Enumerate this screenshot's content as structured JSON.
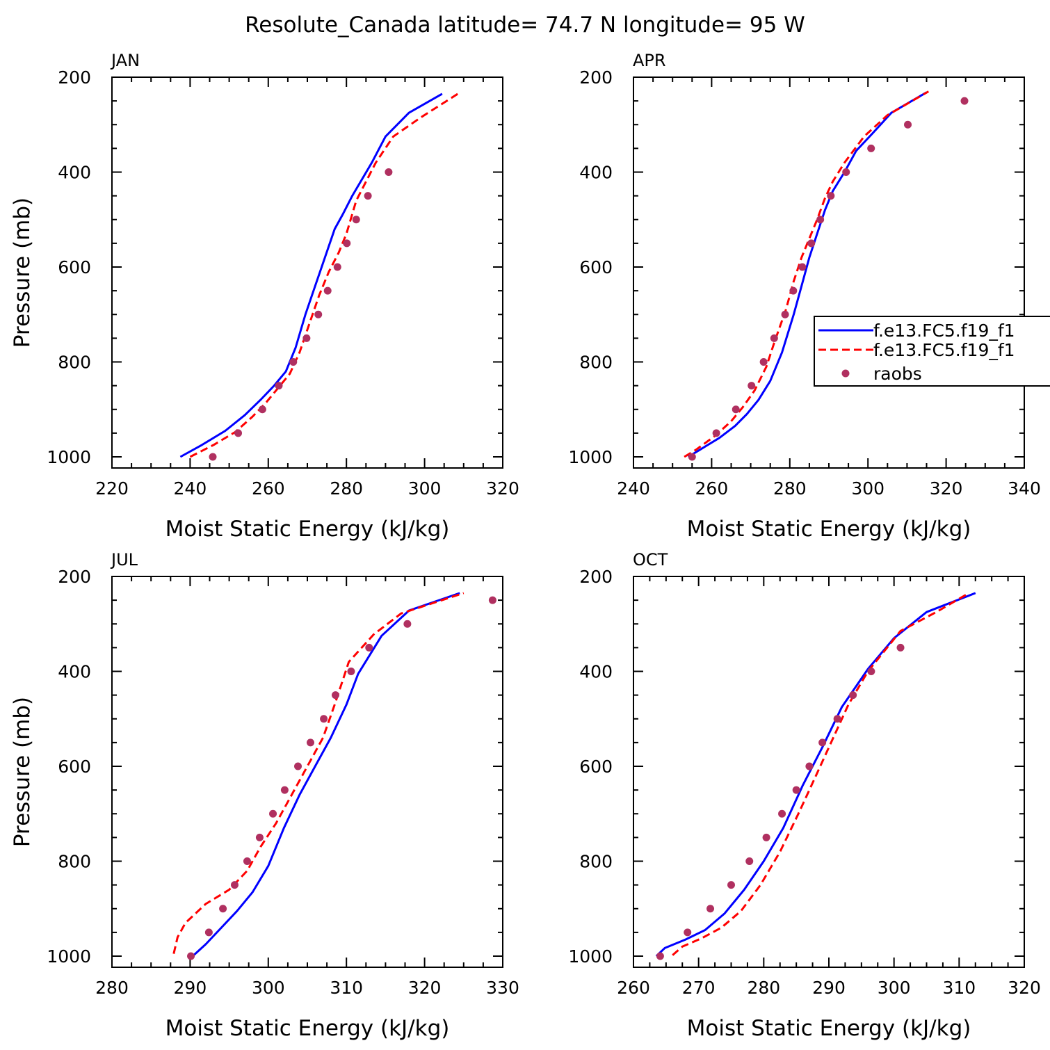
{
  "title": "Resolute_Canada  latitude= 74.7 N longitude= 95 W",
  "legend": {
    "items": [
      {
        "label": "f.e13.FC5.f19_f1",
        "color": "#0000ff",
        "style": "solid"
      },
      {
        "label": "f.e13.FC5.f19_f1",
        "color": "#ff0000",
        "style": "dashed"
      },
      {
        "label": "raobs",
        "color": "#b03060",
        "style": "marker"
      }
    ]
  },
  "chart_data": [
    {
      "type": "line",
      "panel": "JAN",
      "xlabel": "Moist Static Energy (kJ/kg)",
      "ylabel": "Pressure (mb)",
      "xlim": [
        220,
        320
      ],
      "ylim": [
        1000,
        200
      ],
      "xticks": [
        220,
        240,
        260,
        280,
        300,
        320
      ],
      "yticks": [
        200,
        400,
        600,
        800,
        1000
      ],
      "series": [
        {
          "values": [
            [
              237.5,
              1000
            ],
            [
              243,
              975
            ],
            [
              249,
              945
            ],
            [
              254,
              912
            ],
            [
              258,
              880
            ],
            [
              261.5,
              850
            ],
            [
              264.5,
              820
            ],
            [
              267,
              770
            ],
            [
              269.5,
              700
            ],
            [
              272,
              640
            ],
            [
              274.5,
              580
            ],
            [
              277,
              520
            ],
            [
              279,
              490
            ],
            [
              281.5,
              450
            ],
            [
              286.5,
              380
            ],
            [
              290,
              325
            ],
            [
              296,
              275
            ],
            [
              304.5,
              235
            ]
          ]
        },
        {
          "values": [
            [
              240,
              1000
            ],
            [
              246,
              975
            ],
            [
              251.5,
              948
            ],
            [
              256,
              915
            ],
            [
              259.5,
              885
            ],
            [
              262.5,
              855
            ],
            [
              265.5,
              825
            ],
            [
              268,
              780
            ],
            [
              270.5,
              720
            ],
            [
              273,
              660
            ],
            [
              275.5,
              610
            ],
            [
              278,
              570
            ],
            [
              280,
              530
            ],
            [
              282.5,
              460
            ],
            [
              287.5,
              380
            ],
            [
              292,
              325
            ],
            [
              299,
              285
            ],
            [
              308.5,
              235
            ]
          ]
        },
        {
          "values": [
            [
              245.8,
              1000
            ],
            [
              252.3,
              950
            ],
            [
              258.5,
              900
            ],
            [
              262.7,
              850
            ],
            [
              266.4,
              800
            ],
            [
              269.8,
              750
            ],
            [
              272.8,
              700
            ],
            [
              275.2,
              650
            ],
            [
              277.7,
              600
            ],
            [
              280.1,
              550
            ],
            [
              282.5,
              500
            ],
            [
              285.5,
              450
            ],
            [
              290.8,
              400
            ]
          ]
        }
      ]
    },
    {
      "type": "line",
      "panel": "APR",
      "xlabel": "Moist Static Energy (kJ/kg)",
      "ylabel": "",
      "xlim": [
        240,
        340
      ],
      "ylim": [
        1000,
        200
      ],
      "xticks": [
        240,
        260,
        280,
        300,
        320,
        340
      ],
      "yticks": [
        200,
        400,
        600,
        800,
        1000
      ],
      "series": [
        {
          "values": [
            [
              254,
              1000
            ],
            [
              257,
              985
            ],
            [
              262,
              960
            ],
            [
              266,
              935
            ],
            [
              269,
              910
            ],
            [
              272,
              880
            ],
            [
              275,
              840
            ],
            [
              278,
              780
            ],
            [
              281,
              700
            ],
            [
              283,
              640
            ],
            [
              285,
              580
            ],
            [
              287,
              530
            ],
            [
              289,
              480
            ],
            [
              291,
              440
            ],
            [
              294,
              400
            ],
            [
              297,
              355
            ],
            [
              301,
              320
            ],
            [
              306,
              275
            ],
            [
              315,
              232
            ]
          ]
        },
        {
          "values": [
            [
              253,
              1000
            ],
            [
              256,
              985
            ],
            [
              261,
              955
            ],
            [
              265,
              925
            ],
            [
              268,
              895
            ],
            [
              271,
              860
            ],
            [
              274,
              810
            ],
            [
              276,
              760
            ],
            [
              279,
              690
            ],
            [
              281,
              630
            ],
            [
              283,
              580
            ],
            [
              285,
              540
            ],
            [
              287,
              500
            ],
            [
              289,
              455
            ],
            [
              291,
              420
            ],
            [
              294,
              380
            ],
            [
              299,
              325
            ],
            [
              305,
              280
            ],
            [
              315.5,
              230
            ]
          ]
        },
        {
          "values": [
            [
              255,
              1000
            ],
            [
              261.2,
              950
            ],
            [
              266.2,
              900
            ],
            [
              270.2,
              850
            ],
            [
              273.3,
              800
            ],
            [
              276,
              750
            ],
            [
              278.8,
              700
            ],
            [
              280.9,
              650
            ],
            [
              283.2,
              600
            ],
            [
              285.5,
              550
            ],
            [
              287.8,
              500
            ],
            [
              290.5,
              450
            ],
            [
              294.4,
              400
            ],
            [
              300.8,
              350
            ],
            [
              310.2,
              300
            ],
            [
              324.7,
              250
            ]
          ]
        }
      ]
    },
    {
      "type": "line",
      "panel": "JUL",
      "xlabel": "Moist Static Energy (kJ/kg)",
      "ylabel": "Pressure (mb)",
      "xlim": [
        280,
        330
      ],
      "ylim": [
        1000,
        200
      ],
      "xticks": [
        280,
        290,
        300,
        310,
        320,
        330
      ],
      "yticks": [
        200,
        400,
        600,
        800,
        1000
      ],
      "series": [
        {
          "values": [
            [
              290.2,
              1002
            ],
            [
              292,
              975
            ],
            [
              294,
              940
            ],
            [
              296,
              905
            ],
            [
              298,
              865
            ],
            [
              300,
              810
            ],
            [
              302,
              730
            ],
            [
              304,
              660
            ],
            [
              306,
              600
            ],
            [
              308,
              540
            ],
            [
              310,
              470
            ],
            [
              311.5,
              405
            ],
            [
              314.5,
              325
            ],
            [
              318,
              272
            ],
            [
              324.5,
              235
            ]
          ]
        },
        {
          "values": [
            [
              287.9,
              995
            ],
            [
              288.4,
              960
            ],
            [
              289.4,
              930
            ],
            [
              292,
              890
            ],
            [
              295,
              860
            ],
            [
              297.3,
              820
            ],
            [
              299,
              770
            ],
            [
              301,
              720
            ],
            [
              303,
              660
            ],
            [
              305,
              600
            ],
            [
              307,
              540
            ],
            [
              308.5,
              470
            ],
            [
              310.3,
              380
            ],
            [
              313.5,
              322
            ],
            [
              317,
              278
            ],
            [
              325,
              235
            ]
          ]
        },
        {
          "values": [
            [
              290.1,
              1000
            ],
            [
              292.4,
              950
            ],
            [
              294.2,
              900
            ],
            [
              295.7,
              850
            ],
            [
              297.3,
              800
            ],
            [
              298.9,
              750
            ],
            [
              300.6,
              700
            ],
            [
              302.1,
              650
            ],
            [
              303.8,
              600
            ],
            [
              305.4,
              550
            ],
            [
              307.1,
              500
            ],
            [
              308.6,
              450
            ],
            [
              310.6,
              400
            ],
            [
              312.9,
              350
            ],
            [
              317.8,
              300
            ],
            [
              328.7,
              250
            ]
          ]
        }
      ]
    },
    {
      "type": "line",
      "panel": "OCT",
      "xlabel": "Moist Static Energy (kJ/kg)",
      "ylabel": "",
      "xlim": [
        260,
        320
      ],
      "ylim": [
        1000,
        200
      ],
      "xticks": [
        260,
        270,
        280,
        290,
        300,
        310,
        320
      ],
      "yticks": [
        200,
        400,
        600,
        800,
        1000
      ],
      "series": [
        {
          "values": [
            [
              263.5,
              1000
            ],
            [
              264.8,
              983
            ],
            [
              268,
              965
            ],
            [
              271,
              945
            ],
            [
              274,
              910
            ],
            [
              277,
              860
            ],
            [
              280,
              800
            ],
            [
              283,
              730
            ],
            [
              286,
              640
            ],
            [
              289,
              560
            ],
            [
              292,
              475
            ],
            [
              296,
              395
            ],
            [
              300,
              330
            ],
            [
              305,
              275
            ],
            [
              312.5,
              235
            ]
          ]
        },
        {
          "values": [
            [
              266,
              998
            ],
            [
              267.5,
              980
            ],
            [
              270.5,
              962
            ],
            [
              273.5,
              940
            ],
            [
              276.5,
              905
            ],
            [
              279.5,
              850
            ],
            [
              282.5,
              780
            ],
            [
              285.5,
              695
            ],
            [
              288,
              620
            ],
            [
              290.5,
              545
            ],
            [
              293,
              470
            ],
            [
              296,
              400
            ],
            [
              301,
              315
            ],
            [
              306.5,
              275
            ],
            [
              311.5,
              235
            ]
          ]
        },
        {
          "values": [
            [
              264.1,
              1000
            ],
            [
              268.3,
              950
            ],
            [
              271.8,
              900
            ],
            [
              275,
              850
            ],
            [
              277.8,
              800
            ],
            [
              280.4,
              750
            ],
            [
              282.8,
              700
            ],
            [
              285,
              650
            ],
            [
              287,
              600
            ],
            [
              289,
              550
            ],
            [
              291.3,
              500
            ],
            [
              293.7,
              450
            ],
            [
              296.5,
              400
            ],
            [
              301,
              350
            ]
          ]
        }
      ]
    }
  ]
}
